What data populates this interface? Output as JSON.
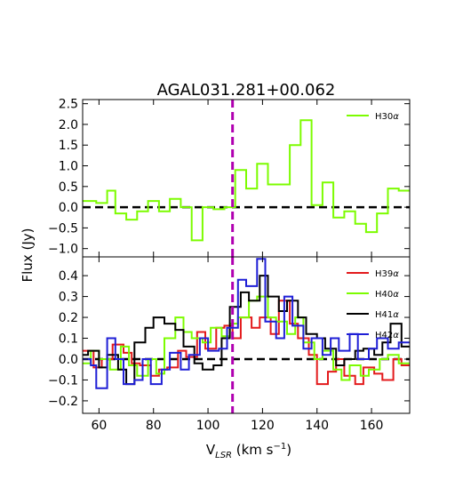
{
  "figure": {
    "title": "AGAL031.281+00.062",
    "xlabel_main": "V",
    "xlabel_sub": "LSR",
    "xlabel_units": " (km s",
    "xlabel_sup": "−1",
    "xlabel_close": ")",
    "ylabel": "Flux (Jy)"
  },
  "colors": {
    "H30": "#7cfc00",
    "H39": "#e31a1c",
    "H40": "#7cfc00",
    "H41": "#000000",
    "H42": "#1f1fd6",
    "vline": "#b000b0",
    "zero": "#000000"
  },
  "chart_data": [
    {
      "type": "line",
      "step": true,
      "panel": "top",
      "xlim": [
        54,
        174
      ],
      "ylim": [
        -1.2,
        2.6
      ],
      "yticks": [
        -1.0,
        -0.5,
        0.0,
        0.5,
        1.0,
        1.5,
        2.0,
        2.5
      ],
      "ytick_labels": [
        "−1.0",
        "−0.5",
        "0.0",
        "0.5",
        "1.0",
        "1.5",
        "2.0",
        "2.5"
      ],
      "xticks": [
        60,
        80,
        100,
        120,
        140,
        160
      ],
      "zero_line": 0,
      "vline_x": 109,
      "legend": "top-right",
      "series": [
        {
          "name": "H30α",
          "color_key": "H30",
          "x": [
            54,
            59,
            63,
            66,
            70,
            74,
            78,
            82,
            86,
            90,
            94,
            98,
            102,
            106,
            110,
            114,
            118,
            122,
            126,
            130,
            134,
            138,
            142,
            146,
            150,
            154,
            158,
            162,
            166,
            170
          ],
          "y": [
            0.15,
            0.1,
            0.4,
            -0.15,
            -0.3,
            -0.1,
            0.15,
            -0.1,
            0.2,
            0.0,
            -0.8,
            0.0,
            -0.05,
            0.0,
            0.9,
            0.45,
            1.05,
            0.55,
            0.55,
            1.5,
            2.1,
            0.05,
            0.6,
            -0.25,
            -0.1,
            -0.4,
            -0.6,
            -0.15,
            0.45,
            0.4
          ]
        }
      ]
    },
    {
      "type": "line",
      "step": true,
      "panel": "bottom",
      "xlim": [
        54,
        174
      ],
      "ylim": [
        -0.26,
        0.49
      ],
      "yticks": [
        -0.2,
        -0.1,
        0.0,
        0.1,
        0.2,
        0.3,
        0.4
      ],
      "ytick_labels": [
        "−0.2",
        "−0.1",
        "0.0",
        "0.1",
        "0.2",
        "0.3",
        "0.4"
      ],
      "xticks": [
        60,
        80,
        100,
        120,
        140,
        160
      ],
      "xtick_labels": [
        "60",
        "80",
        "100",
        "120",
        "140",
        "160"
      ],
      "zero_line": 0,
      "vline_x": 109,
      "legend": "top-right",
      "series": [
        {
          "name": "H39α",
          "color_key": "H39",
          "x": [
            54,
            58,
            61,
            65,
            69,
            72,
            75,
            79,
            82,
            85,
            89,
            92,
            96,
            99,
            103,
            106,
            109,
            112,
            116,
            119,
            123,
            126,
            130,
            133,
            137,
            140,
            144,
            147,
            150,
            154,
            157,
            161,
            164,
            168,
            171
          ],
          "y": [
            0.04,
            -0.04,
            0.0,
            0.07,
            0.03,
            -0.02,
            -0.03,
            -0.08,
            -0.05,
            -0.04,
            0.04,
            0.01,
            0.13,
            0.05,
            0.15,
            0.16,
            0.1,
            0.2,
            0.15,
            0.2,
            0.12,
            0.28,
            0.17,
            0.1,
            0.02,
            -0.12,
            -0.06,
            0.0,
            -0.08,
            -0.12,
            -0.04,
            -0.07,
            -0.1,
            0.0,
            -0.03
          ]
        },
        {
          "name": "H40α",
          "color_key": "H40",
          "x": [
            54,
            57,
            60,
            64,
            68,
            71,
            74,
            78,
            81,
            84,
            88,
            91,
            94,
            98,
            101,
            105,
            108,
            111,
            115,
            118,
            122,
            125,
            129,
            132,
            135,
            139,
            142,
            146,
            149,
            152,
            156,
            159,
            163,
            166,
            170
          ],
          "y": [
            -0.02,
            0.04,
            0.0,
            -0.05,
            0.06,
            -0.03,
            -0.08,
            0.0,
            -0.07,
            0.1,
            0.2,
            0.13,
            0.1,
            0.08,
            0.15,
            0.11,
            0.17,
            0.2,
            0.28,
            0.3,
            0.2,
            0.18,
            0.12,
            0.2,
            0.08,
            0.0,
            0.04,
            -0.05,
            -0.1,
            -0.03,
            -0.08,
            -0.05,
            0.0,
            0.02,
            -0.02
          ]
        },
        {
          "name": "H41α",
          "color_key": "H41",
          "x": [
            54,
            56,
            60,
            63,
            67,
            70,
            73,
            77,
            80,
            84,
            88,
            91,
            95,
            98,
            102,
            105,
            108,
            112,
            115,
            119,
            122,
            126,
            129,
            133,
            136,
            140,
            143,
            147,
            150,
            154,
            157,
            161,
            164,
            167,
            171
          ],
          "y": [
            0.02,
            0.04,
            -0.04,
            0.02,
            -0.05,
            -0.12,
            0.08,
            0.15,
            0.2,
            0.17,
            0.14,
            0.06,
            -0.02,
            -0.05,
            -0.03,
            0.1,
            0.25,
            0.32,
            0.28,
            0.4,
            0.3,
            0.23,
            0.28,
            0.2,
            0.12,
            0.1,
            0.05,
            -0.03,
            0.0,
            0.04,
            0.05,
            0.02,
            0.08,
            0.17,
            0.06
          ]
        },
        {
          "name": "H42α",
          "color_key": "H42",
          "x": [
            54,
            57,
            59,
            63,
            66,
            69,
            73,
            76,
            79,
            83,
            86,
            90,
            93,
            97,
            100,
            104,
            107,
            111,
            114,
            118,
            121,
            125,
            128,
            131,
            135,
            138,
            142,
            145,
            148,
            152,
            155,
            159,
            162,
            166,
            170
          ],
          "y": [
            0.0,
            -0.03,
            -0.14,
            0.1,
            0.0,
            -0.12,
            -0.1,
            0.0,
            -0.12,
            -0.05,
            0.03,
            -0.05,
            0.02,
            0.1,
            0.04,
            0.05,
            0.15,
            0.38,
            0.35,
            0.48,
            0.18,
            0.1,
            0.3,
            0.16,
            0.05,
            0.1,
            0.02,
            0.1,
            0.04,
            0.12,
            0.0,
            0.05,
            0.1,
            0.05,
            0.08
          ]
        }
      ]
    }
  ]
}
